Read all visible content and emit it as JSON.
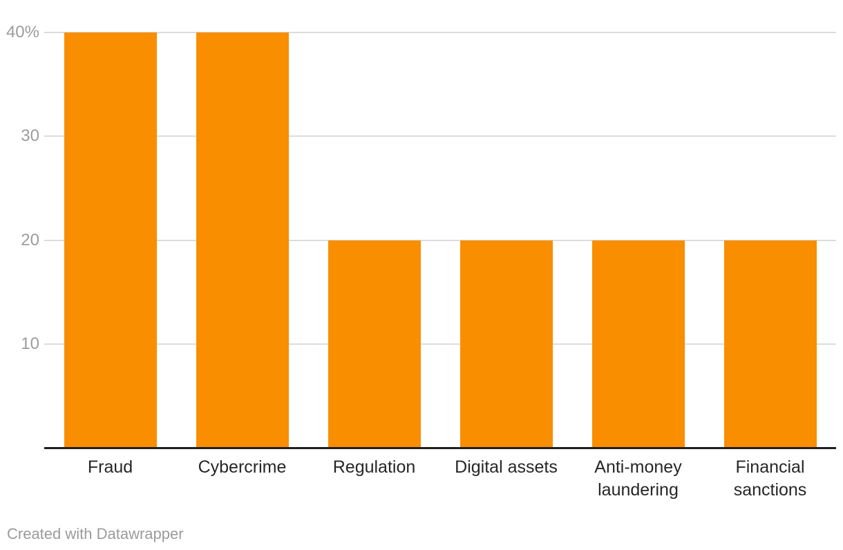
{
  "chart_data": {
    "type": "bar",
    "title": "",
    "xlabel": "",
    "ylabel": "",
    "categories": [
      "Fraud",
      "Cybercrime",
      "Regulation",
      "Digital assets",
      "Anti-money laundering",
      "Financial sanctions"
    ],
    "category_label_lines": [
      [
        "Fraud"
      ],
      [
        "Cybercrime"
      ],
      [
        "Regulation"
      ],
      [
        "Digital assets"
      ],
      [
        "Anti-money",
        "laundering"
      ],
      [
        "Financial",
        "sanctions"
      ]
    ],
    "values": [
      40,
      40,
      20,
      20,
      20,
      20
    ],
    "unit": "%",
    "ylim": [
      0,
      40
    ],
    "yticks": [
      {
        "value": 10,
        "label": "10"
      },
      {
        "value": 20,
        "label": "20"
      },
      {
        "value": 30,
        "label": "30"
      },
      {
        "value": 40,
        "label": "40%"
      }
    ],
    "grid": true,
    "legend": false,
    "colors": {
      "bar": "#F98E00",
      "gridline": "#DCDCDC",
      "axis_line": "#1F1F1F",
      "tick_text": "#9C9C9C",
      "category_text": "#262626"
    }
  },
  "footer": {
    "credit": "Created with Datawrapper",
    "text_color": "#9B9B9B"
  }
}
